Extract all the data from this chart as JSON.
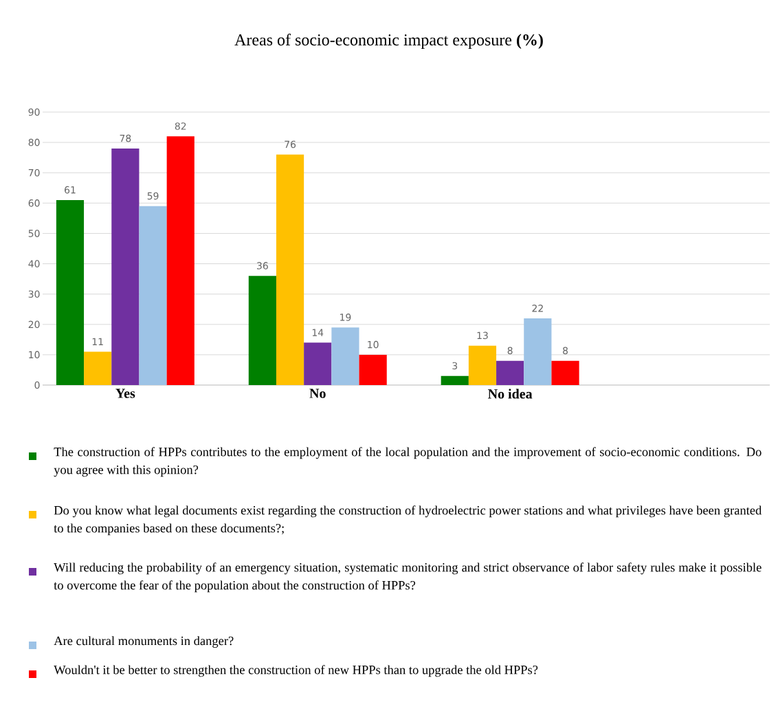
{
  "chart_data": {
    "type": "bar",
    "title": "Areas of socio-economic impact exposure **(%)**",
    "categories": [
      "Yes",
      "No",
      "No idea"
    ],
    "series": [
      {
        "name": "The construction of HPPs contributes to the employment of the local population and the improvement of socio-economic conditions. Do you agree with this opinion?",
        "color": "#008000",
        "values": [
          61,
          36,
          3
        ]
      },
      {
        "name": "Do you know what legal documents exist regarding the construction of hydroelectric power stations and what privileges have been granted to the companies based on these documents?;",
        "color": "#ffc000",
        "values": [
          11,
          76,
          13
        ]
      },
      {
        "name": "Will reducing the probability of an emergency situation, systematic monitoring and strict observance of labor safety rules make it possible to overcome the fear of the population about the construction of HPPs?",
        "color": "#7030a0",
        "values": [
          78,
          14,
          8
        ]
      },
      {
        "name": "Are cultural monuments in danger?",
        "color": "#9dc3e6",
        "values": [
          59,
          19,
          22
        ]
      },
      {
        "name": "Wouldn't it be better to strengthen the construction of new HPPs than to upgrade the old HPPs?",
        "color": "#ff0000",
        "values": [
          82,
          10,
          8
        ]
      }
    ],
    "ylim": [
      0,
      90
    ],
    "yticks": [
      0,
      10,
      20,
      30,
      40,
      50,
      60,
      70,
      80,
      90
    ],
    "grid": "y",
    "legend": "bottom",
    "data_labels": true
  }
}
